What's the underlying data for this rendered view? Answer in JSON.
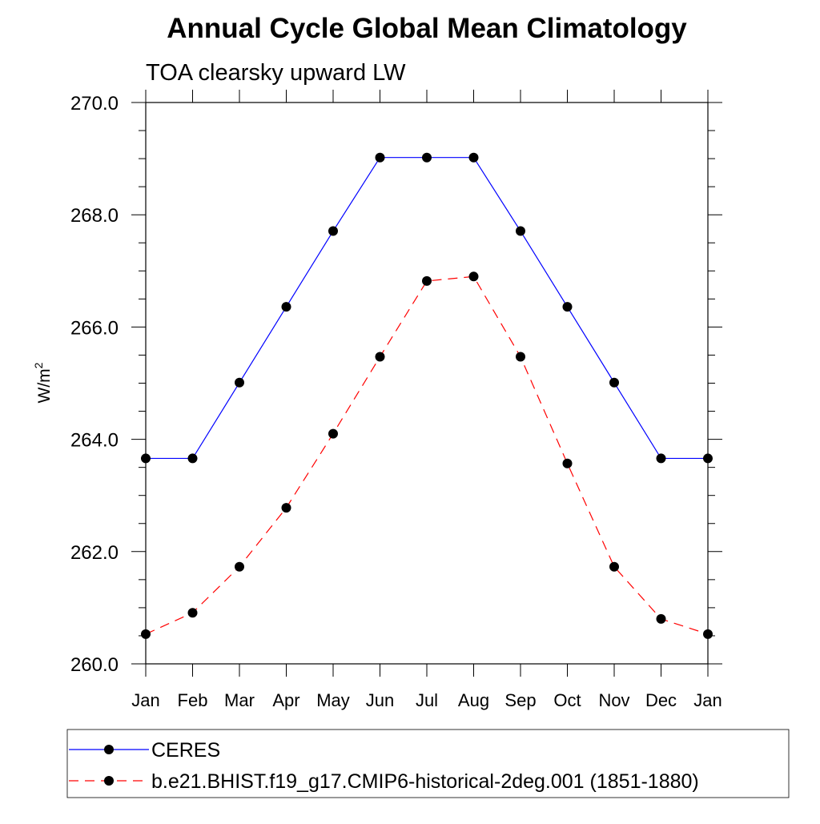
{
  "chart_data": {
    "type": "line",
    "title": "Annual Cycle Global Mean Climatology",
    "subtitle": "TOA clearsky upward LW",
    "ylabel": "W/m",
    "ylabel_sup": "2",
    "ylim": [
      260.0,
      270.0
    ],
    "yticks": [
      "260.0",
      "262.0",
      "264.0",
      "266.0",
      "268.0",
      "270.0"
    ],
    "categories": [
      "Jan",
      "Feb",
      "Mar",
      "Apr",
      "May",
      "Jun",
      "Jul",
      "Aug",
      "Sep",
      "Oct",
      "Nov",
      "Dec",
      "Jan"
    ],
    "grid": false,
    "legend_position": "bottom",
    "series": [
      {
        "name": "CERES",
        "color": "#0000ff",
        "dash": "solid",
        "marker": "filled-circle",
        "values": [
          263.66,
          263.66,
          265.01,
          266.36,
          267.71,
          269.02,
          269.02,
          269.02,
          267.71,
          266.36,
          265.01,
          263.66,
          263.66
        ]
      },
      {
        "name": "b.e21.BHIST.f19_g17.CMIP6-historical-2deg.001 (1851-1880)",
        "color": "#ff0000",
        "dash": "dashed",
        "marker": "filled-circle",
        "values": [
          260.53,
          260.91,
          261.73,
          262.78,
          264.1,
          265.47,
          266.82,
          266.9,
          265.47,
          263.57,
          261.73,
          260.8,
          260.53
        ]
      }
    ]
  }
}
